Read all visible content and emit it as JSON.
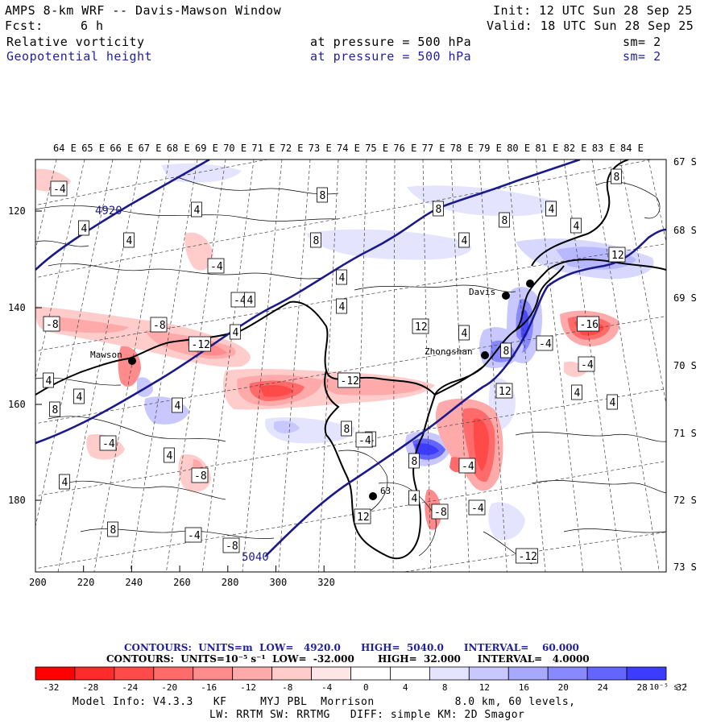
{
  "header": {
    "title": "AMPS 8-km WRF -- Davis-Mawson Window",
    "init": "Init: 12 UTC Sun 28 Sep 25",
    "fcst_label": "Fcst:",
    "fcst_value": "6 h",
    "valid": "Valid: 18 UTC Sun 28 Sep 25",
    "field1_name": "Relative vorticity",
    "field1_level": "at pressure =  500 hPa",
    "field1_sm": "sm= 2",
    "field2_name": "Geopotential height",
    "field2_level": "at pressure =  500 hPa",
    "field2_sm": "sm= 2",
    "field2_color": "#1f1fa0"
  },
  "map": {
    "top_lon_labels": [
      "64 E",
      "65 E",
      "66 E",
      "67 E",
      "68 E",
      "69 E",
      "70 E",
      "71 E",
      "72 E",
      "73 E",
      "74 E",
      "75 E",
      "76 E",
      "77 E",
      "78 E",
      "79 E",
      "80 E",
      "81 E",
      "82 E",
      "83 E",
      "84 E"
    ],
    "right_lat_labels": [
      "67 S",
      "68 S",
      "69 S",
      "70 S",
      "71 S",
      "72 S",
      "73 S"
    ],
    "left_y_ticks": [
      "120",
      "140",
      "160",
      "180"
    ],
    "bottom_x_ticks": [
      "200",
      "220",
      "240",
      "260",
      "280",
      "300",
      "320"
    ],
    "stations": [
      {
        "name": "Mawson",
        "marker": "station-dot"
      },
      {
        "name": "Davis",
        "marker": "station-dot"
      },
      {
        "name": "Zhongshan",
        "marker": "station-dot"
      },
      {
        "name": "63",
        "marker": "station-dot"
      }
    ],
    "height_contour_labels": [
      "4920",
      "5040"
    ],
    "vorticity_contour_labels": [
      "-4",
      "4",
      "4",
      "4",
      "-4",
      "8",
      "-4",
      "8",
      "4",
      "8",
      "4",
      "8",
      "4",
      "8",
      "4",
      "12",
      "4",
      "-8",
      "-8",
      "-12",
      "4",
      "4",
      "8",
      "8",
      "-12",
      "8",
      "12",
      "-16",
      "-4",
      "12",
      "-4",
      "4",
      "-4",
      "-8",
      "4",
      "8",
      "4",
      "4",
      "8",
      "4",
      "-4",
      "-8",
      "-12",
      "12",
      "4",
      "-8",
      "-4",
      "4",
      "8",
      "-4",
      "4",
      "4",
      "4",
      "-4",
      "8"
    ]
  },
  "footer": {
    "contours1": "CONTOURS:  UNITS=m  LOW=   4920.0      HIGH=  5040.0      INTERVAL=    60.000",
    "contours2": "CONTOURS:  UNITS=10⁻⁵ s⁻¹  LOW=  -32.000       HIGH=  32.000     INTERVAL=   4.0000",
    "colorbar_labels": [
      "-32",
      "-28",
      "-24",
      "-20",
      "-16",
      "-12",
      "-8",
      "-4",
      "0",
      "4",
      "8",
      "12",
      "16",
      "20",
      "24",
      "28",
      "32"
    ],
    "colorbar_unit": "10⁻⁵ s⁻¹",
    "colorbar_colors": [
      "#ff0000",
      "#ff2a2a",
      "#ff4a4a",
      "#ff6a6a",
      "#ff8c8c",
      "#ffaaaa",
      "#ffcccc",
      "#ffe6e6",
      "#ffffff",
      "#ffffff",
      "#e4e4ff",
      "#c8c8ff",
      "#a8a8ff",
      "#8888ff",
      "#6464ff",
      "#3c3cff",
      "#1414ff"
    ],
    "model_info1": "Model Info: V4.3.3   KF     MYJ PBL  Morrison            8.0 km, 60 levels,",
    "model_info2": "LW: RRTM SW: RRTMG   DIFF: simple KM: 2D Smagor"
  },
  "colors": {
    "height_contour": "#1a1a8c",
    "coastline": "#000000",
    "positive_vorticity": "#4a4aff",
    "negative_vorticity": "#ff5050"
  }
}
